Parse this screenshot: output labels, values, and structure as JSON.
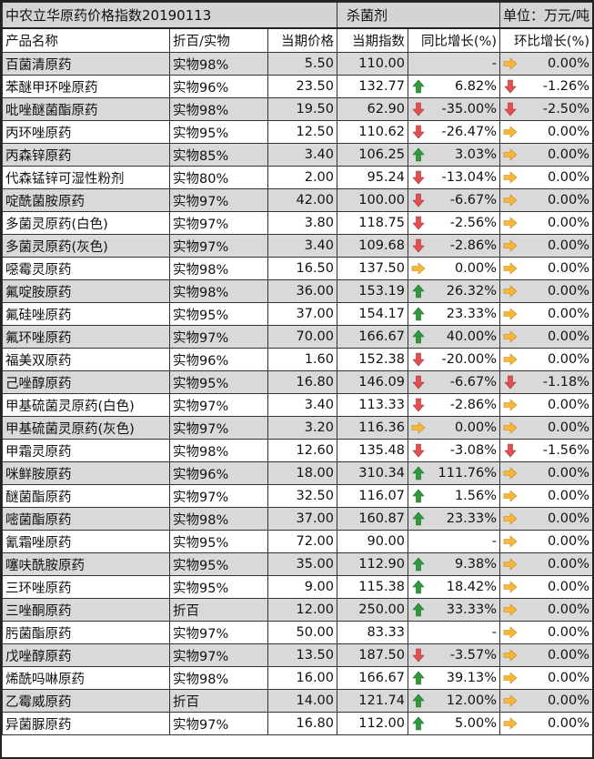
{
  "title": "中农立华原药价格指数20190113",
  "category": "杀菌剂",
  "unit": "单位：万元/吨",
  "headers": [
    "产品名称",
    "折百/实物",
    "当期价格",
    "当期指数",
    "同比增长(%)",
    "环比增长(%)"
  ],
  "colors": {
    "up": "#2e9b3a",
    "down": "#e05050",
    "flat": "#f5b83a",
    "row_alt": "#d9d9d9"
  },
  "rows": [
    [
      "百菌清原药",
      "实物98%",
      "5.50",
      "110.00",
      "none",
      "-",
      "flat",
      "0.00%"
    ],
    [
      "苯醚甲环唑原药",
      "实物96%",
      "23.50",
      "132.77",
      "up",
      "6.82%",
      "down",
      "-1.26%"
    ],
    [
      "吡唑醚菌酯原药",
      "实物98%",
      "19.50",
      "62.90",
      "down",
      "-35.00%",
      "down",
      "-2.50%"
    ],
    [
      "丙环唑原药",
      "实物95%",
      "12.50",
      "110.62",
      "down",
      "-26.47%",
      "flat",
      "0.00%"
    ],
    [
      "丙森锌原药",
      "实物85%",
      "3.40",
      "106.25",
      "up",
      "3.03%",
      "flat",
      "0.00%"
    ],
    [
      "代森锰锌可湿性粉剂",
      "实物80%",
      "2.00",
      "95.24",
      "down",
      "-13.04%",
      "flat",
      "0.00%"
    ],
    [
      "啶酰菌胺原药",
      "实物97%",
      "42.00",
      "100.00",
      "down",
      "-6.67%",
      "flat",
      "0.00%"
    ],
    [
      "多菌灵原药(白色)",
      "实物97%",
      "3.80",
      "118.75",
      "down",
      "-2.56%",
      "flat",
      "0.00%"
    ],
    [
      "多菌灵原药(灰色)",
      "实物97%",
      "3.40",
      "109.68",
      "down",
      "-2.86%",
      "flat",
      "0.00%"
    ],
    [
      "噁霉灵原药",
      "实物98%",
      "16.50",
      "137.50",
      "flat",
      "0.00%",
      "flat",
      "0.00%"
    ],
    [
      "氟啶胺原药",
      "实物98%",
      "36.00",
      "153.19",
      "up",
      "26.32%",
      "flat",
      "0.00%"
    ],
    [
      "氟硅唑原药",
      "实物95%",
      "37.00",
      "154.17",
      "up",
      "23.33%",
      "flat",
      "0.00%"
    ],
    [
      "氟环唑原药",
      "实物97%",
      "70.00",
      "166.67",
      "up",
      "40.00%",
      "flat",
      "0.00%"
    ],
    [
      "福美双原药",
      "实物96%",
      "1.60",
      "152.38",
      "down",
      "-20.00%",
      "flat",
      "0.00%"
    ],
    [
      "己唑醇原药",
      "实物95%",
      "16.80",
      "146.09",
      "down",
      "-6.67%",
      "down",
      "-1.18%"
    ],
    [
      "甲基硫菌灵原药(白色)",
      "实物97%",
      "3.40",
      "113.33",
      "down",
      "-2.86%",
      "flat",
      "0.00%"
    ],
    [
      "甲基硫菌灵原药(灰色)",
      "实物97%",
      "3.20",
      "116.36",
      "flat",
      "0.00%",
      "flat",
      "0.00%"
    ],
    [
      "甲霜灵原药",
      "实物98%",
      "12.60",
      "135.48",
      "down",
      "-3.08%",
      "down",
      "-1.56%"
    ],
    [
      "咪鲜胺原药",
      "实物96%",
      "18.00",
      "310.34",
      "up",
      "111.76%",
      "flat",
      "0.00%"
    ],
    [
      "醚菌酯原药",
      "实物97%",
      "32.50",
      "116.07",
      "up",
      "1.56%",
      "flat",
      "0.00%"
    ],
    [
      "嘧菌酯原药",
      "实物98%",
      "37.00",
      "160.87",
      "up",
      "23.33%",
      "flat",
      "0.00%"
    ],
    [
      "氰霜唑原药",
      "实物95%",
      "72.00",
      "90.00",
      "none",
      "-",
      "flat",
      "0.00%"
    ],
    [
      "噻呋酰胺原药",
      "实物95%",
      "35.00",
      "112.90",
      "up",
      "9.38%",
      "flat",
      "0.00%"
    ],
    [
      "三环唑原药",
      "实物95%",
      "9.00",
      "115.38",
      "up",
      "18.42%",
      "flat",
      "0.00%"
    ],
    [
      "三唑酮原药",
      "折百",
      "12.00",
      "250.00",
      "up",
      "33.33%",
      "flat",
      "0.00%"
    ],
    [
      "肟菌酯原药",
      "实物97%",
      "50.00",
      "83.33",
      "none",
      "-",
      "flat",
      "0.00%"
    ],
    [
      "戊唑醇原药",
      "实物97%",
      "13.50",
      "187.50",
      "down",
      "-3.57%",
      "flat",
      "0.00%"
    ],
    [
      "烯酰吗啉原药",
      "实物98%",
      "16.00",
      "166.67",
      "up",
      "39.13%",
      "flat",
      "0.00%"
    ],
    [
      "乙霉威原药",
      "折百",
      "14.00",
      "121.74",
      "up",
      "12.00%",
      "flat",
      "0.00%"
    ],
    [
      "异菌脲原药",
      "实物97%",
      "16.80",
      "112.00",
      "up",
      "5.00%",
      "flat",
      "0.00%"
    ]
  ]
}
